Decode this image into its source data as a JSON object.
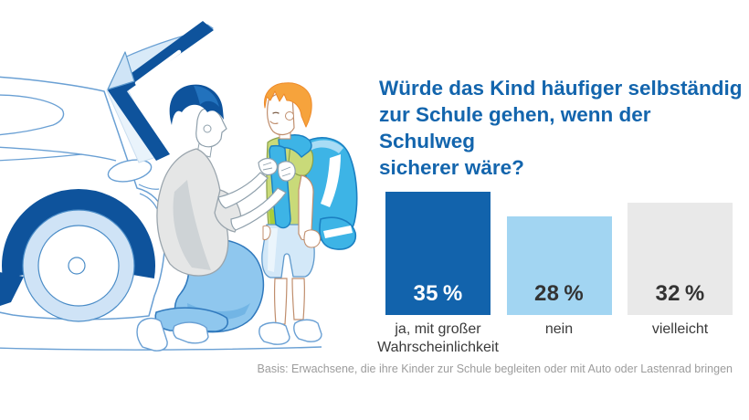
{
  "title": {
    "lines": [
      "Würde das Kind häufiger selbständig",
      "zur Schule gehen, wenn der Schulweg",
      "sicherer wäre?"
    ],
    "color": "#1365ad"
  },
  "chart_data": {
    "type": "bar",
    "title": "Würde das Kind häufiger selbständig zur Schule gehen, wenn der Schulweg sicherer wäre?",
    "categories": [
      "ja, mit großer Wahrscheinlichkeit",
      "nein",
      "vielleicht"
    ],
    "values": [
      35,
      28,
      32
    ],
    "value_labels": [
      "35 %",
      "28 %",
      "32 %"
    ],
    "unit": "%",
    "bar_colors": [
      "#1263ac",
      "#a2d5f2",
      "#e9e9e9"
    ],
    "value_label_colors": [
      "#ffffff",
      "#333333",
      "#333333"
    ],
    "ylim": [
      0,
      35
    ],
    "grid": false,
    "legend": false,
    "source_note": "Basis: Erwachsene, die ihre Kinder zur Schule begleiten oder mit Auto oder Lastenrad bringen"
  },
  "footnote": "Basis: Erwachsene, die ihre Kinder zur Schule begleiten oder mit Auto oder Lastenrad bringen",
  "illustration": {
    "alt": "Erwachsener kniet vor einem Kind mit Schulranzen neben einem Auto mit offener Heckklappe",
    "colors": {
      "dark_blue": "#0e539c",
      "line_blue": "#6aa0d4",
      "pale_blue": "#d9eaf8",
      "pants_blue": "#8fc7ee",
      "shirt_gray": "#e5e6e6",
      "backpack_blue": "#3db4e6",
      "shirt_green": "#c9da79",
      "hair_orange": "#f6a33c"
    }
  }
}
